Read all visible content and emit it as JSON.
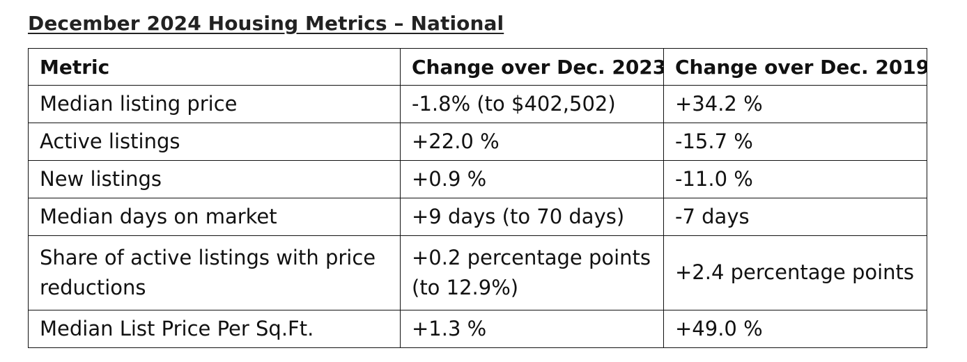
{
  "heading": {
    "title": "December 2024 Housing Metrics – National"
  },
  "table": {
    "headers": [
      "Metric",
      "Change over Dec. 2023",
      "Change over Dec. 2019"
    ],
    "rows": [
      {
        "metric": "Median listing price",
        "dec2023": "-1.8% (to $402,502)",
        "dec2019": "+34.2 %"
      },
      {
        "metric": "Active listings",
        "dec2023": "+22.0 %",
        "dec2019": "-15.7 %"
      },
      {
        "metric": "New listings",
        "dec2023": "+0.9 %",
        "dec2019": "-11.0 %"
      },
      {
        "metric": "Median days on market",
        "dec2023": "+9 days (to 70 days)",
        "dec2019": "-7 days"
      },
      {
        "metric": "Share of active listings with price reductions",
        "dec2023": "+0.2 percentage points (to 12.9%)",
        "dec2019": "+2.4 percentage points"
      },
      {
        "metric": "Median List Price Per Sq.Ft.",
        "dec2023": "+1.3 %",
        "dec2019": "+49.0 %"
      }
    ]
  }
}
